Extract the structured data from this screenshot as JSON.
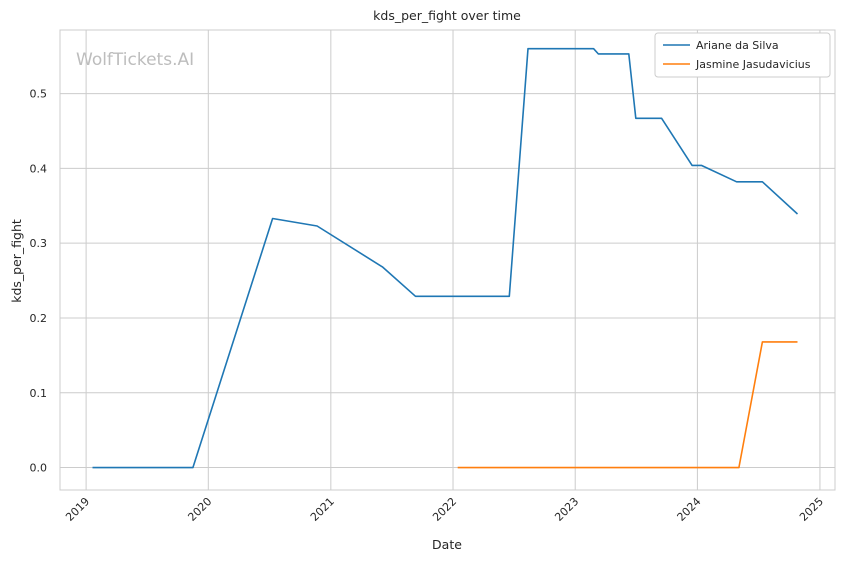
{
  "chart_data": {
    "type": "line",
    "title": "kds_per_fight over time",
    "xlabel": "Date",
    "ylabel": "kds_per_fight",
    "watermark": "WolfTickets.AI",
    "x_ticks": [
      "2019",
      "2020",
      "2021",
      "2022",
      "2023",
      "2024",
      "2025"
    ],
    "y_ticks": [
      "0.0",
      "0.1",
      "0.2",
      "0.3",
      "0.4",
      "0.5"
    ],
    "xlim": [
      "2018-10-15",
      "2025-02-15"
    ],
    "ylim": [
      -0.03,
      0.585
    ],
    "grid": true,
    "legend_position": "top-right",
    "series": [
      {
        "name": "Ariane da Silva",
        "color": "#1f77b4",
        "points": [
          [
            "2019-01-20",
            0.0
          ],
          [
            "2019-11-16",
            0.0
          ],
          [
            "2020-07-11",
            0.333
          ],
          [
            "2020-11-21",
            0.323
          ],
          [
            "2021-06-05",
            0.268
          ],
          [
            "2021-09-11",
            0.229
          ],
          [
            "2022-06-18",
            0.229
          ],
          [
            "2022-08-13",
            0.56
          ],
          [
            "2023-02-25",
            0.56
          ],
          [
            "2023-03-11",
            0.553
          ],
          [
            "2023-06-10",
            0.553
          ],
          [
            "2023-07-01",
            0.467
          ],
          [
            "2023-09-16",
            0.467
          ],
          [
            "2023-12-16",
            0.404
          ],
          [
            "2024-01-13",
            0.404
          ],
          [
            "2024-04-27",
            0.382
          ],
          [
            "2024-07-13",
            0.382
          ],
          [
            "2024-10-26",
            0.339
          ]
        ]
      },
      {
        "name": "Jasmine Jasudavicius",
        "color": "#ff7f0e",
        "points": [
          [
            "2022-01-15",
            0.0
          ],
          [
            "2024-05-04",
            0.0
          ],
          [
            "2024-07-13",
            0.168
          ],
          [
            "2024-10-26",
            0.168
          ]
        ]
      }
    ]
  }
}
